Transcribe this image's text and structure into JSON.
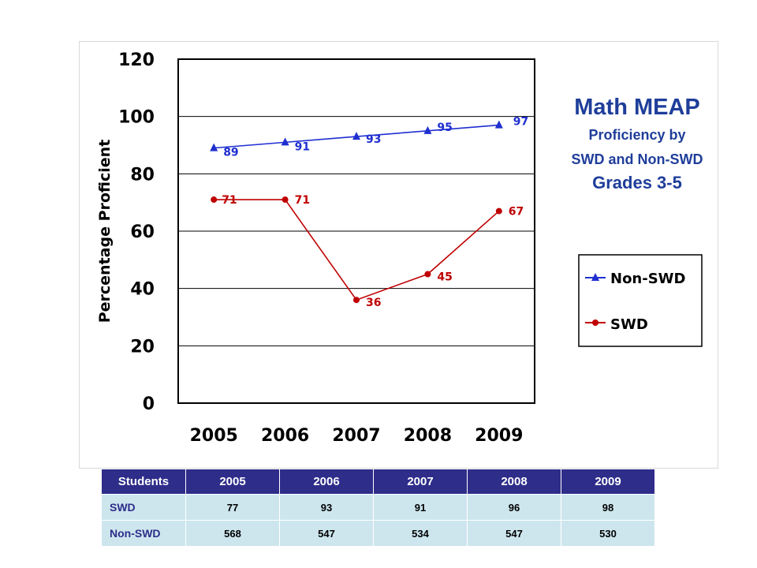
{
  "colors": {
    "non_swd": "#1f2fd0",
    "swd": "#c00000",
    "title": "#1f3e9a",
    "table_header": "#2e2d8a",
    "table_cell": "#cde6ee"
  },
  "chart_data": {
    "type": "line",
    "title": "Math MEAP",
    "subtitle_lines": [
      "Proficiency by",
      "SWD and Non-SWD",
      "Grades 3-5"
    ],
    "ylabel": "Percentage Proficient",
    "xlabel": "",
    "categories": [
      "2005",
      "2006",
      "2007",
      "2008",
      "2009"
    ],
    "yticks": [
      "0",
      "20",
      "40",
      "60",
      "80",
      "100",
      "120"
    ],
    "ylim": [
      0,
      120
    ],
    "grid": true,
    "legend_position": "right",
    "series": [
      {
        "name": "Non-SWD",
        "marker": "triangle",
        "values": [
          89,
          91,
          93,
          95,
          97
        ],
        "labels": [
          "89",
          "91",
          "93",
          "95",
          "97"
        ]
      },
      {
        "name": "SWD",
        "marker": "circle",
        "values": [
          71,
          71,
          36,
          45,
          67
        ],
        "labels": [
          "71",
          "71",
          "36",
          "45",
          "67"
        ]
      }
    ]
  },
  "table": {
    "header": [
      "Students",
      "2005",
      "2006",
      "2007",
      "2008",
      "2009"
    ],
    "rows": [
      [
        "SWD",
        "77",
        "93",
        "91",
        "96",
        "98"
      ],
      [
        "Non-SWD",
        "568",
        "547",
        "534",
        "547",
        "530"
      ]
    ]
  }
}
